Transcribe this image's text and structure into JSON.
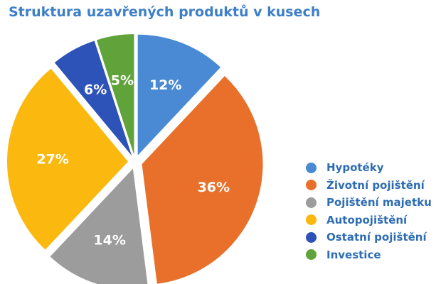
{
  "chart_data": {
    "type": "pie",
    "title": "Struktura uzavřených produktů v kusech",
    "categories": [
      "Hypotéky",
      "Životní pojištění",
      "Pojištění majetku",
      "Autopojištění",
      "Ostatní pojištění",
      "Investice"
    ],
    "values": [
      12,
      36,
      14,
      27,
      6,
      5
    ],
    "data_labels": [
      "12%",
      "36%",
      "14%",
      "27%",
      "6%",
      "5%"
    ],
    "colors": [
      "#4a8ad4",
      "#e8702a",
      "#9c9c9c",
      "#fbb80f",
      "#2d52b8",
      "#5fa33a"
    ],
    "legend_position": "right",
    "exploded": true
  }
}
